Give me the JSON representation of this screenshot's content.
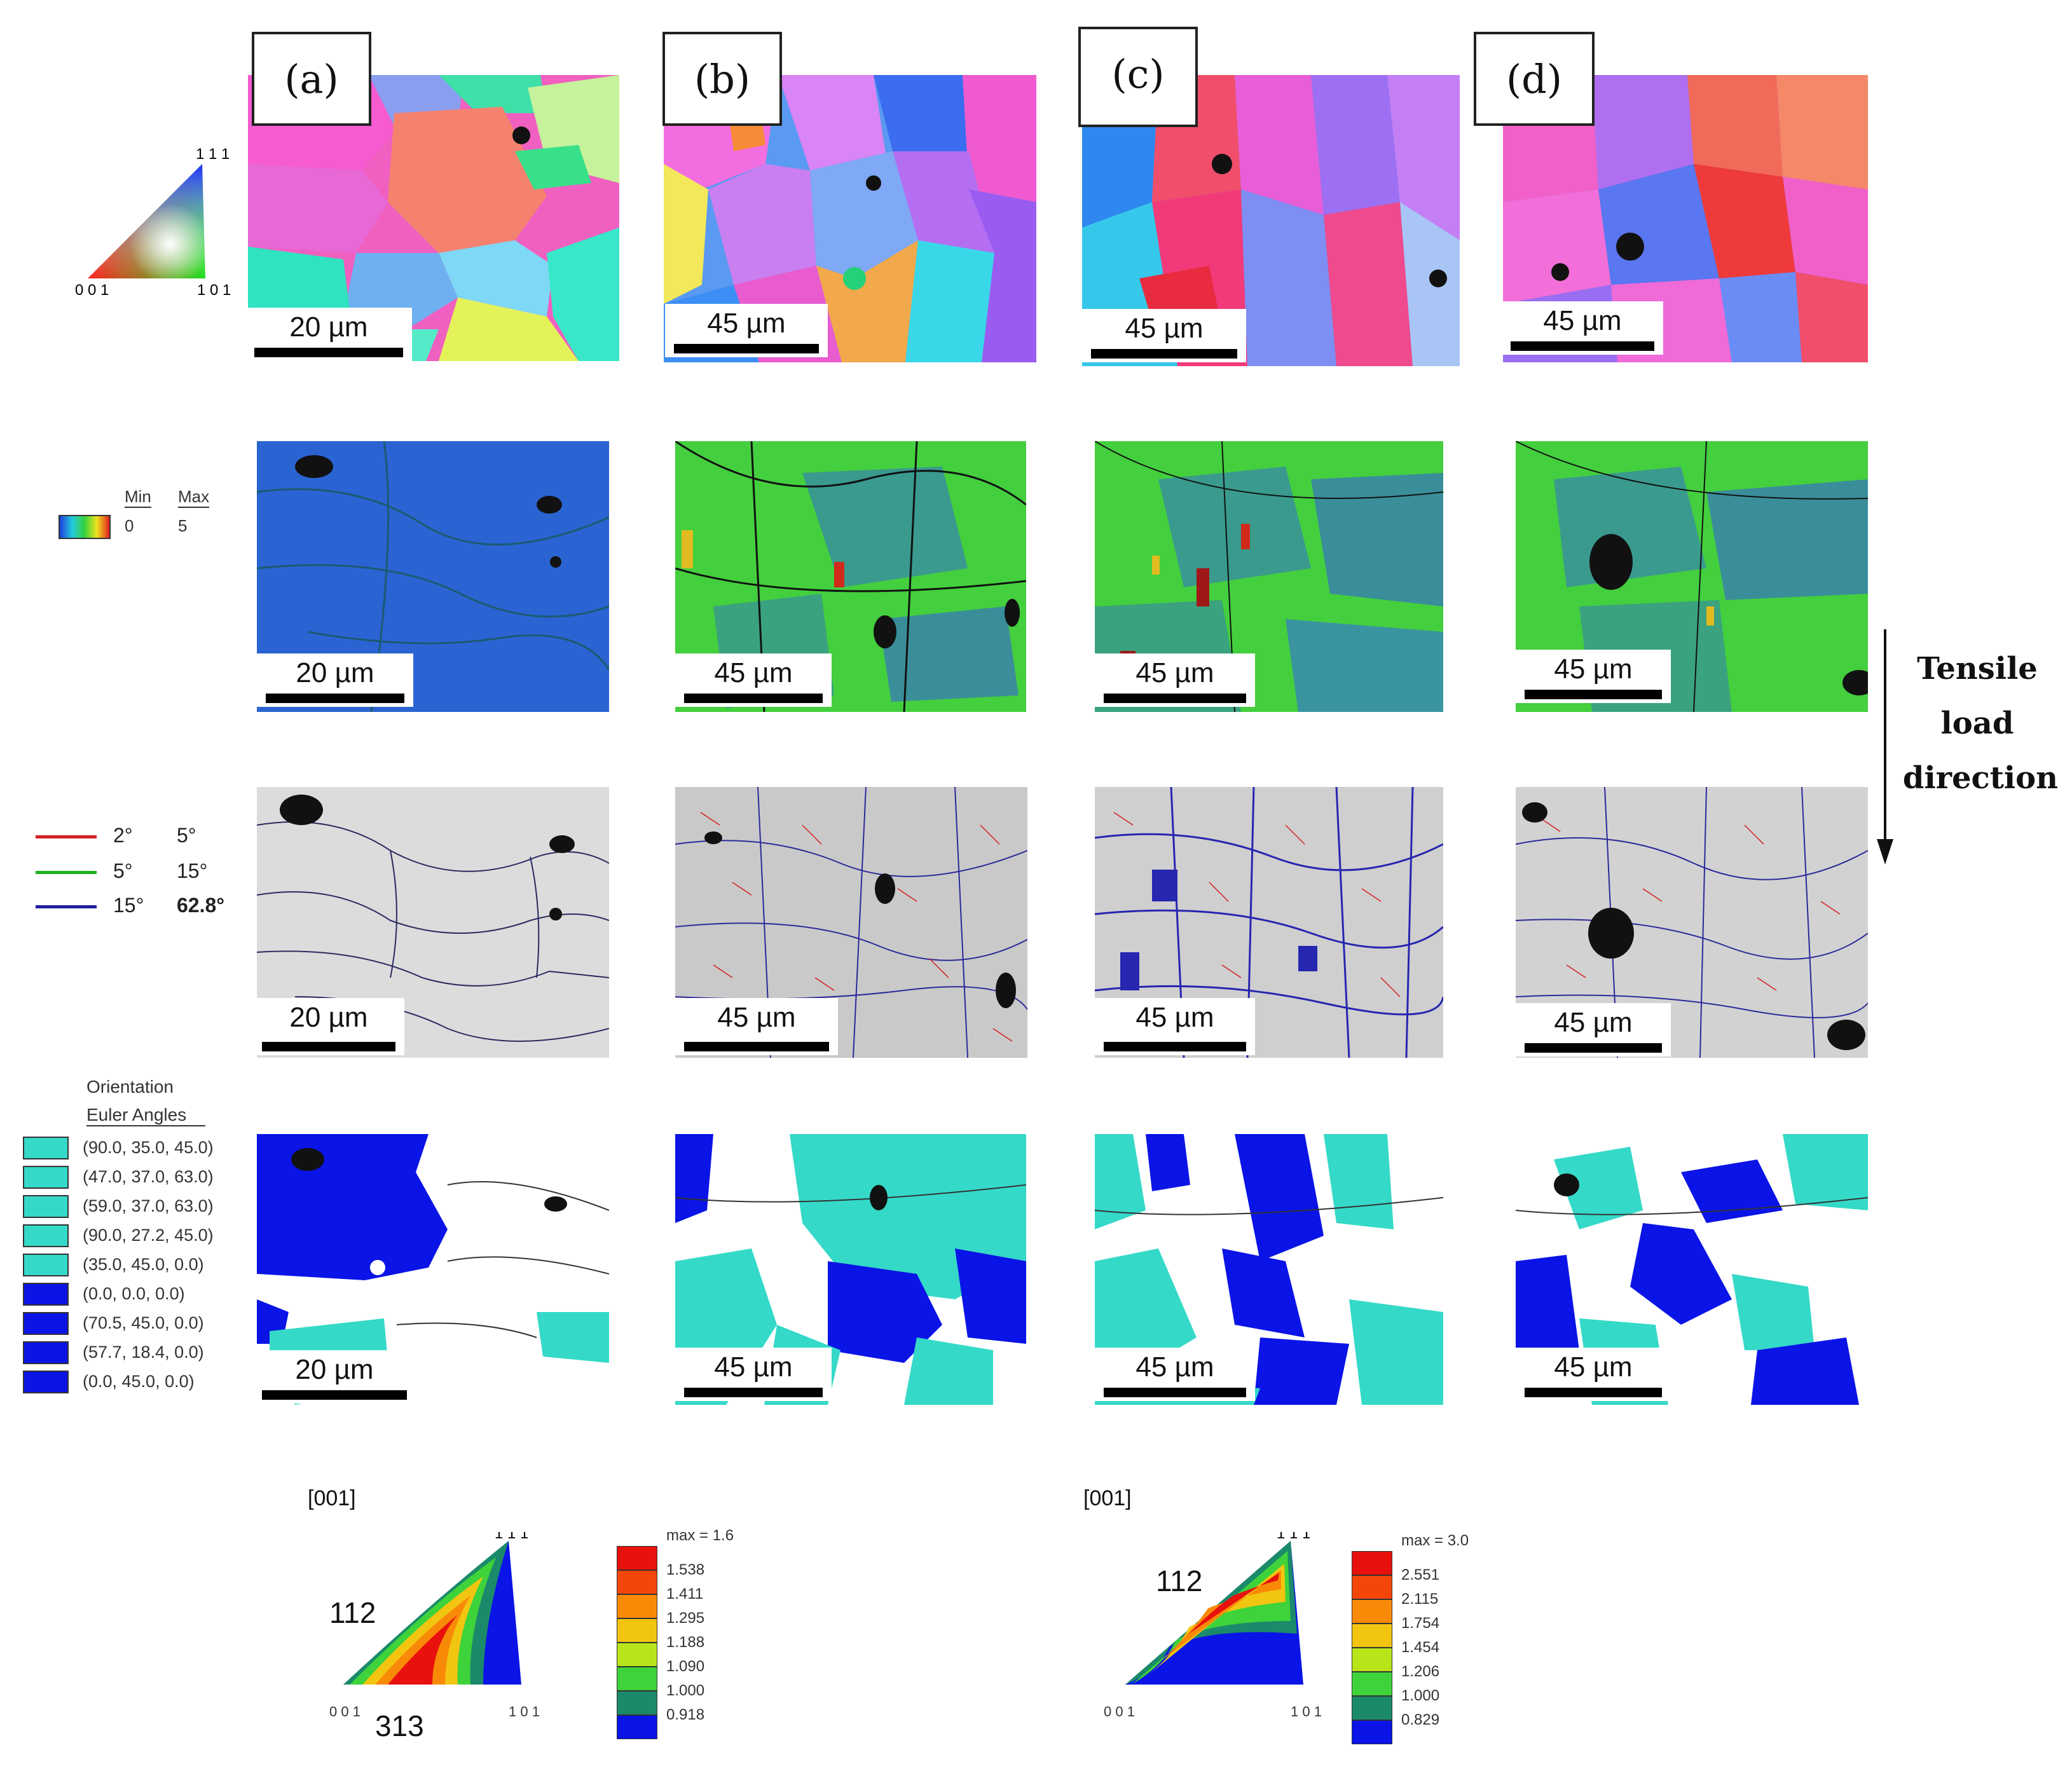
{
  "panel_labels": [
    "(a)",
    "(b)",
    "(c)",
    "(d)"
  ],
  "scale_bars": {
    "a": "20 µm",
    "b": "45 µm",
    "c": "45 µm",
    "d": "45 µm"
  },
  "ipf_key": {
    "top": "1 1 1",
    "bottom_left": "0 0 1",
    "bottom_right": "1 0 1"
  },
  "kam_legend": {
    "min_label": "Min",
    "max_label": "Max",
    "min_value": "0",
    "max_value": "5"
  },
  "misorientation_legend": [
    {
      "color": "#d42020",
      "from": "2°",
      "to": "5°"
    },
    {
      "color": "#20b020",
      "from": "5°",
      "to": "15°"
    },
    {
      "color": "#2020a0",
      "from": "15°",
      "to": "62.8°"
    }
  ],
  "texture_legend": {
    "title": "Orientation",
    "subtitle": "Euler Angles",
    "entries": [
      {
        "color": "#35d9c8",
        "label": "(90.0, 35.0, 45.0)"
      },
      {
        "color": "#35d9c8",
        "label": "(47.0, 37.0, 63.0)"
      },
      {
        "color": "#35d9c8",
        "label": "(59.0, 37.0, 63.0)"
      },
      {
        "color": "#35d9c8",
        "label": "(90.0, 27.2, 45.0)"
      },
      {
        "color": "#35d9c8",
        "label": "(35.0, 45.0, 0.0)"
      },
      {
        "color": "#0a14e6",
        "label": "(0.0, 0.0, 0.0)"
      },
      {
        "color": "#0a14e6",
        "label": "(70.5, 45.0, 0.0)"
      },
      {
        "color": "#0a14e6",
        "label": "(57.7, 18.4, 0.0)"
      },
      {
        "color": "#0a14e6",
        "label": "(0.0, 45.0, 0.0)"
      }
    ]
  },
  "tensile_label": {
    "line1": "Tensile",
    "line2": "load",
    "line3": "direction"
  },
  "inverse_pole_figures": [
    {
      "direction": "[001]",
      "corner_111": "1 1 1",
      "corner_001": "0 0 1",
      "corner_101": "1 0 1",
      "annotation_1": "112",
      "annotation_2": "313",
      "max_label": "max = 1.6",
      "levels": [
        "1.538",
        "1.411",
        "1.295",
        "1.188",
        "1.090",
        "1.000",
        "0.918"
      ],
      "colors": [
        "#e8110d",
        "#f5460a",
        "#f98a08",
        "#f2c511",
        "#b7e51a",
        "#3ed33a",
        "#1b8a6a",
        "#0a14e6"
      ]
    },
    {
      "direction": "[001]",
      "corner_111": "1 1 1",
      "corner_001": "0 0 1",
      "corner_101": "1 0 1",
      "annotation_1": "112",
      "max_label": "max = 3.0",
      "levels": [
        "2.551",
        "2.115",
        "1.754",
        "1.454",
        "1.206",
        "1.000",
        "0.829"
      ],
      "colors": [
        "#e8110d",
        "#f5460a",
        "#f98a08",
        "#f2c511",
        "#b7e51a",
        "#3ed33a",
        "#1b8a6a",
        "#0a14e6"
      ]
    }
  ]
}
